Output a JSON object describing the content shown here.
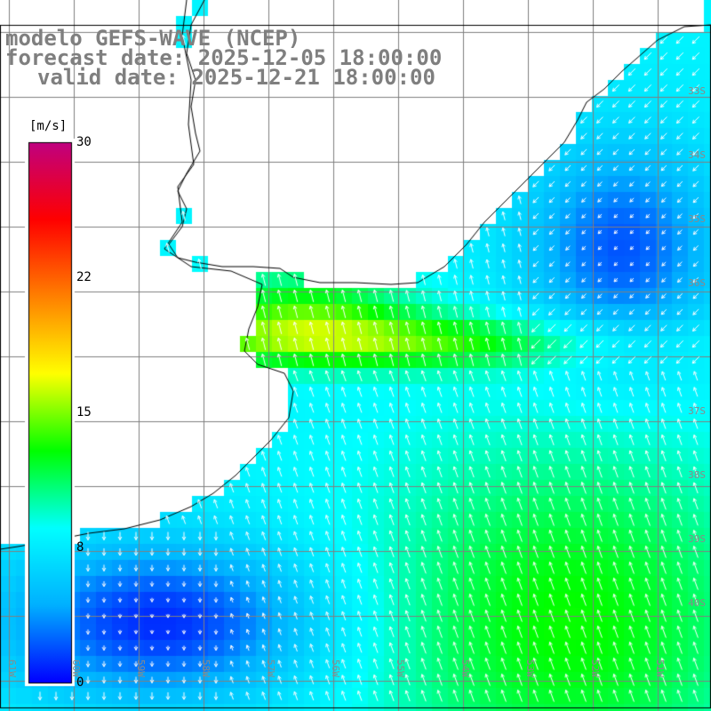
{
  "title": {
    "model": "modelo GEFS-WAVE (NCEP)",
    "forecast": "forecast date: 2025-12-05 18:00:00",
    "valid": "valid date: 2025-12-21 18:00:00"
  },
  "colorbar": {
    "unit": "[m/s]",
    "ticks": [
      "30",
      "22",
      "15",
      "8",
      "0"
    ],
    "range": [
      0,
      30
    ],
    "stops": [
      "#0000ff",
      "#00b0ff",
      "#00ffff",
      "#00ff00",
      "#ffff00",
      "#ff8000",
      "#ff0000",
      "#c00080"
    ]
  },
  "map": {
    "lat_labels": [
      "33S",
      "34S",
      "35S",
      "36S",
      "37S",
      "38S",
      "39S",
      "40S"
    ],
    "lon_labels": [
      "61W",
      "60W",
      "59W",
      "58W",
      "57W",
      "56W",
      "55W",
      "54W",
      "53W",
      "52W",
      "51W"
    ],
    "land_color": "#ffffff",
    "grid_color": "#808080",
    "arrow_color": "#ffffff"
  }
}
